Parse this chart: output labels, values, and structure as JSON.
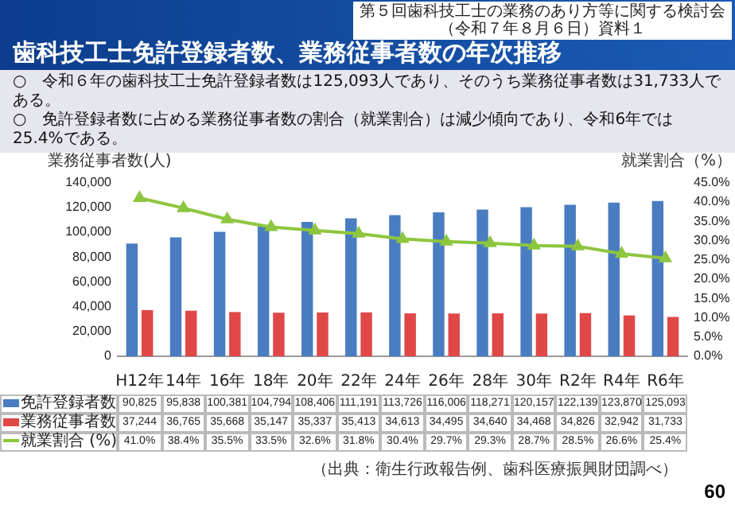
{
  "chart_data": {
    "type": "bar",
    "title": "歯科技工士免許登録者数、業務従事者数の年次推移",
    "ylabel": "業務従事者数(人)",
    "y2label": "就業割合（%）",
    "annotations": [
      "第５回歯科技工士の業務のあり方等に関する検討会（令和７年８月６日）資料１",
      "○　令和６年の歯科技工士免許登録者数は125,093人であり、そのうち業務従事者数は31,733人である。",
      "○　免許登録者数に占める業務従事者数の割合（就業割合）は減少傾向であり、令和6年では25.4%である。",
      "（出典：衛生行政報告例、歯科医療振興財団調べ）",
      "60"
    ],
    "categories": [
      "H12年",
      "14年",
      "16年",
      "18年",
      "20年",
      "22年",
      "24年",
      "26年",
      "28年",
      "30年",
      "R2年",
      "R4年",
      "R6年"
    ],
    "series": [
      {
        "name": "免許登録者数",
        "color": "#4a7cc1",
        "values": [
          90825,
          95838,
          100381,
          104794,
          108406,
          111191,
          113726,
          116006,
          118271,
          120157,
          122139,
          123870,
          125093
        ],
        "value_labels": [
          "90,825",
          "95,838",
          "100,381",
          "104,794",
          "108,406",
          "111,191",
          "113,726",
          "116,006",
          "118,271",
          "120,157",
          "122,139",
          "123,870",
          "125,093"
        ]
      },
      {
        "name": "業務従事者数",
        "color": "#e04848",
        "values": [
          37244,
          36765,
          35668,
          35147,
          35337,
          35413,
          34613,
          34495,
          34640,
          34468,
          34826,
          32942,
          31733
        ],
        "value_labels": [
          "37,244",
          "36,765",
          "35,668",
          "35,147",
          "35,337",
          "35,413",
          "34,613",
          "34,495",
          "34,640",
          "34,468",
          "34,826",
          "32,942",
          "31,733"
        ]
      },
      {
        "name": "就業割合 (%)",
        "type": "line",
        "axis": "y2",
        "color": "#8dc63f",
        "marker": "triangle",
        "values": [
          41.0,
          38.4,
          35.5,
          33.5,
          32.6,
          31.8,
          30.4,
          29.7,
          29.3,
          28.7,
          28.5,
          26.6,
          25.4
        ],
        "value_labels": [
          "41.0%",
          "38.4%",
          "35.5%",
          "33.5%",
          "32.6%",
          "31.8%",
          "30.4%",
          "29.7%",
          "29.3%",
          "28.7%",
          "28.5%",
          "26.6%",
          "25.4%"
        ]
      }
    ],
    "ylim": [
      0,
      140000
    ],
    "yticks": [
      {
        "value": 0,
        "label": "0"
      },
      {
        "value": 20000,
        "label": "20,000"
      },
      {
        "value": 40000,
        "label": "40,000"
      },
      {
        "value": 60000,
        "label": "60,000"
      },
      {
        "value": 80000,
        "label": "80,000"
      },
      {
        "value": 100000,
        "label": "100,000"
      },
      {
        "value": 120000,
        "label": "120,000"
      },
      {
        "value": 140000,
        "label": "140,000"
      }
    ],
    "y2lim": [
      0,
      45
    ],
    "y2ticks": [
      {
        "value": 0,
        "label": "0.0%"
      },
      {
        "value": 5,
        "label": "5.0%"
      },
      {
        "value": 10,
        "label": "10.0%"
      },
      {
        "value": 15,
        "label": "15.0%"
      },
      {
        "value": 20,
        "label": "20.0%"
      },
      {
        "value": 25,
        "label": "25.0%"
      },
      {
        "value": 30,
        "label": "30.0%"
      },
      {
        "value": 35,
        "label": "35.0%"
      },
      {
        "value": 40,
        "label": "40.0%"
      },
      {
        "value": 45,
        "label": "45.0%"
      }
    ],
    "grid": false,
    "legend": "bottom"
  }
}
